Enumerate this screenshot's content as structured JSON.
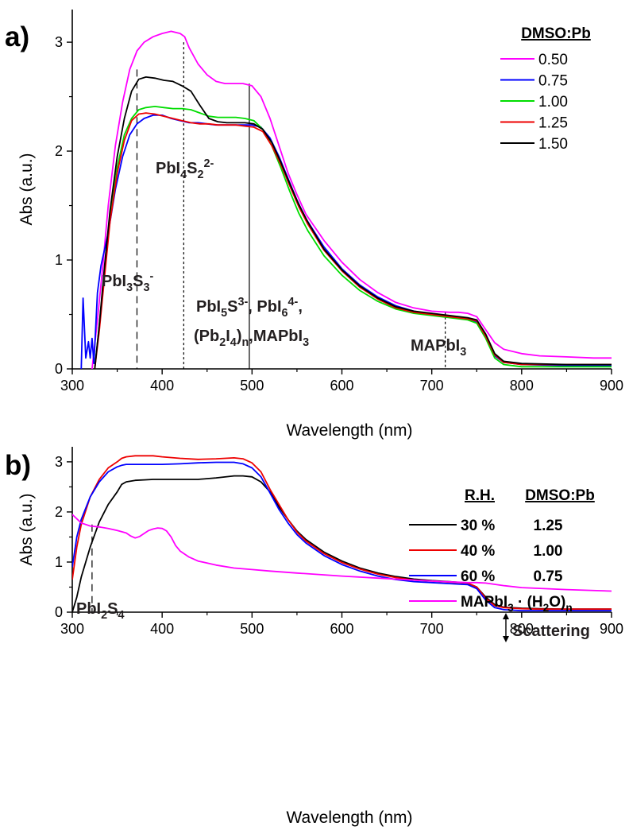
{
  "chart_data": [
    {
      "panel_label": "a)",
      "type": "line",
      "xlabel": "Wavelength (nm)",
      "ylabel": "Abs (a.u.)",
      "xlim": [
        300,
        900
      ],
      "ylim": [
        0,
        3.3
      ],
      "xticks": [
        "300",
        "400",
        "500",
        "600",
        "700",
        "800",
        "900"
      ],
      "yticks": [
        "0",
        "1",
        "2",
        "3"
      ],
      "grid": false,
      "legend_position": "top-right",
      "legend_title": "DMSO:Pb",
      "series": [
        {
          "name": "0.50",
          "color": "#ff00ff",
          "x": [
            322,
            328,
            334,
            340,
            348,
            356,
            364,
            372,
            380,
            390,
            400,
            410,
            420,
            425,
            430,
            440,
            450,
            460,
            470,
            480,
            490,
            500,
            510,
            520,
            530,
            540,
            550,
            560,
            580,
            600,
            620,
            640,
            660,
            680,
            700,
            720,
            730,
            740,
            750,
            760,
            770,
            780,
            800,
            820,
            850,
            880,
            900
          ],
          "y": [
            0,
            0.45,
            0.95,
            1.5,
            2.05,
            2.45,
            2.75,
            2.92,
            3.0,
            3.05,
            3.08,
            3.1,
            3.08,
            3.05,
            2.95,
            2.8,
            2.7,
            2.64,
            2.62,
            2.62,
            2.62,
            2.6,
            2.5,
            2.3,
            2.05,
            1.8,
            1.6,
            1.42,
            1.18,
            0.98,
            0.82,
            0.7,
            0.61,
            0.56,
            0.53,
            0.52,
            0.52,
            0.51,
            0.48,
            0.36,
            0.24,
            0.18,
            0.14,
            0.12,
            0.11,
            0.1,
            0.1
          ]
        },
        {
          "name": "0.75",
          "color": "#0000ff",
          "x": [
            310,
            312,
            315,
            318,
            320,
            322,
            324,
            328,
            332,
            340,
            348,
            356,
            364,
            372,
            380,
            390,
            400,
            410,
            420,
            430,
            440,
            450,
            460,
            470,
            480,
            490,
            500,
            510,
            520,
            530,
            540,
            550,
            560,
            580,
            600,
            620,
            640,
            660,
            680,
            700,
            720,
            740,
            750,
            760,
            770,
            780,
            800,
            850,
            900
          ],
          "y": [
            0,
            0.65,
            0.1,
            0.25,
            0.1,
            0.28,
            0.05,
            0.7,
            0.95,
            1.25,
            1.65,
            1.95,
            2.15,
            2.25,
            2.3,
            2.33,
            2.33,
            2.3,
            2.28,
            2.26,
            2.26,
            2.25,
            2.24,
            2.24,
            2.24,
            2.24,
            2.24,
            2.22,
            2.12,
            1.95,
            1.75,
            1.55,
            1.38,
            1.12,
            0.92,
            0.77,
            0.66,
            0.58,
            0.53,
            0.5,
            0.48,
            0.46,
            0.43,
            0.3,
            0.12,
            0.06,
            0.04,
            0.03,
            0.03
          ]
        },
        {
          "name": "1.00",
          "color": "#00dd00",
          "x": [
            325,
            330,
            336,
            342,
            350,
            358,
            366,
            374,
            382,
            392,
            402,
            412,
            422,
            432,
            442,
            452,
            462,
            472,
            482,
            492,
            502,
            512,
            522,
            532,
            542,
            552,
            562,
            580,
            600,
            620,
            640,
            660,
            680,
            700,
            720,
            740,
            750,
            760,
            770,
            780,
            800,
            850,
            900
          ],
          "y": [
            0,
            0.4,
            0.9,
            1.4,
            1.85,
            2.15,
            2.3,
            2.38,
            2.4,
            2.41,
            2.4,
            2.39,
            2.39,
            2.38,
            2.35,
            2.32,
            2.31,
            2.31,
            2.31,
            2.3,
            2.28,
            2.2,
            2.05,
            1.85,
            1.63,
            1.43,
            1.27,
            1.04,
            0.86,
            0.72,
            0.62,
            0.55,
            0.51,
            0.49,
            0.47,
            0.45,
            0.42,
            0.28,
            0.1,
            0.04,
            0.02,
            0.02,
            0.02
          ]
        },
        {
          "name": "1.25",
          "color": "#ee0000",
          "x": [
            325,
            330,
            336,
            342,
            350,
            358,
            366,
            374,
            382,
            392,
            402,
            412,
            422,
            432,
            442,
            452,
            462,
            472,
            482,
            492,
            502,
            512,
            522,
            532,
            542,
            552,
            562,
            580,
            600,
            620,
            640,
            660,
            680,
            700,
            720,
            740,
            750,
            760,
            770,
            780,
            800,
            850,
            900
          ],
          "y": [
            0,
            0.35,
            0.85,
            1.35,
            1.8,
            2.1,
            2.28,
            2.34,
            2.35,
            2.34,
            2.32,
            2.3,
            2.28,
            2.26,
            2.25,
            2.25,
            2.24,
            2.24,
            2.24,
            2.23,
            2.22,
            2.18,
            2.05,
            1.88,
            1.68,
            1.49,
            1.33,
            1.09,
            0.9,
            0.75,
            0.64,
            0.56,
            0.52,
            0.5,
            0.48,
            0.46,
            0.44,
            0.3,
            0.13,
            0.06,
            0.04,
            0.04,
            0.04
          ]
        },
        {
          "name": "1.50",
          "color": "#000000",
          "x": [
            325,
            330,
            336,
            342,
            350,
            358,
            366,
            374,
            382,
            392,
            402,
            412,
            422,
            432,
            442,
            452,
            462,
            472,
            482,
            492,
            502,
            512,
            522,
            532,
            542,
            552,
            562,
            580,
            600,
            620,
            640,
            660,
            680,
            700,
            720,
            740,
            750,
            760,
            770,
            780,
            800,
            850,
            900
          ],
          "y": [
            0,
            0.4,
            0.95,
            1.45,
            1.95,
            2.3,
            2.55,
            2.66,
            2.68,
            2.67,
            2.65,
            2.64,
            2.6,
            2.55,
            2.42,
            2.3,
            2.27,
            2.26,
            2.26,
            2.26,
            2.25,
            2.2,
            2.08,
            1.9,
            1.7,
            1.51,
            1.35,
            1.1,
            0.91,
            0.76,
            0.65,
            0.57,
            0.53,
            0.51,
            0.49,
            0.47,
            0.45,
            0.32,
            0.14,
            0.07,
            0.05,
            0.04,
            0.04
          ]
        }
      ],
      "markers": [
        {
          "x": 372,
          "style": "dashed",
          "ymax": 2.75
        },
        {
          "x": 424,
          "style": "dotted",
          "ymax": 3.0
        },
        {
          "x": 497,
          "style": "solid",
          "ymax": 2.62
        },
        {
          "x": 715,
          "style": "dotted",
          "ymax": 0.52
        }
      ],
      "annotations": [
        {
          "parts": [
            [
              "PbI",
              "n"
            ],
            [
              "4",
              "sub"
            ],
            [
              "S",
              "n"
            ],
            [
              "2",
              "sub"
            ],
            [
              "2-",
              "sup"
            ]
          ]
        },
        {
          "parts": [
            [
              "PbI",
              "n"
            ],
            [
              "3",
              "sub"
            ],
            [
              "S",
              "n"
            ],
            [
              "3",
              "sub"
            ],
            [
              "-",
              "sup"
            ]
          ]
        },
        {
          "parts": [
            [
              "PbI",
              "n"
            ],
            [
              "5",
              "sub"
            ],
            [
              "S",
              "n"
            ],
            [
              "3-",
              "sup"
            ],
            [
              ", PbI",
              "n"
            ],
            [
              "6",
              "sub"
            ],
            [
              "4-",
              "sup"
            ],
            [
              ",",
              "n"
            ]
          ]
        },
        {
          "parts": [
            [
              "(Pb",
              "n"
            ],
            [
              "2",
              "sub"
            ],
            [
              "I",
              "n"
            ],
            [
              "4",
              "sub"
            ],
            [
              ")",
              "n"
            ],
            [
              "n",
              "sub"
            ],
            [
              ",MAPbI",
              "n"
            ],
            [
              "3",
              "sub"
            ]
          ]
        },
        {
          "parts": [
            [
              "MAPbI",
              "n"
            ],
            [
              "3",
              "sub"
            ]
          ]
        }
      ]
    },
    {
      "panel_label": "b)",
      "type": "line",
      "xlabel": "Wavelength (nm)",
      "ylabel": "Abs (a.u.)",
      "xlim": [
        300,
        900
      ],
      "ylim": [
        0,
        3.3
      ],
      "xticks": [
        "300",
        "400",
        "500",
        "600",
        "700",
        "800",
        "900"
      ],
      "yticks": [
        "0",
        "1",
        "2",
        "3"
      ],
      "grid": false,
      "legend_position": "right",
      "legend_headers": [
        "R.H.",
        "DMSO:Pb"
      ],
      "series": [
        {
          "name": "30 %",
          "dmso": "1.25",
          "color": "#000000",
          "x": [
            300,
            305,
            310,
            320,
            330,
            340,
            350,
            355,
            360,
            370,
            380,
            390,
            400,
            420,
            440,
            460,
            480,
            490,
            500,
            510,
            520,
            530,
            540,
            550,
            560,
            580,
            600,
            620,
            640,
            660,
            680,
            700,
            720,
            740,
            750,
            760,
            770,
            780,
            800,
            820,
            850,
            900
          ],
          "y": [
            0,
            0.3,
            0.7,
            1.3,
            1.8,
            2.15,
            2.4,
            2.55,
            2.6,
            2.63,
            2.64,
            2.65,
            2.65,
            2.65,
            2.65,
            2.68,
            2.72,
            2.72,
            2.7,
            2.6,
            2.4,
            2.1,
            1.85,
            1.62,
            1.45,
            1.2,
            1.02,
            0.88,
            0.78,
            0.71,
            0.66,
            0.63,
            0.61,
            0.58,
            0.5,
            0.3,
            0.15,
            0.1,
            0.08,
            0.07,
            0.06,
            0.06
          ]
        },
        {
          "name": "40 %",
          "dmso": "1.00",
          "color": "#ee0000",
          "x": [
            300,
            305,
            310,
            320,
            330,
            340,
            350,
            355,
            360,
            370,
            380,
            390,
            400,
            420,
            440,
            460,
            480,
            490,
            500,
            510,
            520,
            530,
            540,
            550,
            560,
            580,
            600,
            620,
            640,
            660,
            680,
            700,
            720,
            740,
            750,
            760,
            770,
            780,
            800,
            820,
            850,
            900
          ],
          "y": [
            0.65,
            1.3,
            1.75,
            2.3,
            2.65,
            2.88,
            3.0,
            3.07,
            3.1,
            3.12,
            3.12,
            3.12,
            3.1,
            3.07,
            3.05,
            3.06,
            3.08,
            3.06,
            2.98,
            2.8,
            2.45,
            2.15,
            1.85,
            1.6,
            1.42,
            1.17,
            0.99,
            0.86,
            0.76,
            0.69,
            0.64,
            0.62,
            0.6,
            0.58,
            0.5,
            0.28,
            0.13,
            0.09,
            0.07,
            0.06,
            0.06,
            0.06
          ]
        },
        {
          "name": "60 %",
          "dmso": "0.75",
          "color": "#0000ff",
          "x": [
            300,
            305,
            310,
            320,
            330,
            340,
            350,
            355,
            360,
            370,
            380,
            390,
            400,
            420,
            440,
            460,
            480,
            490,
            500,
            510,
            520,
            530,
            540,
            550,
            560,
            580,
            600,
            620,
            640,
            660,
            680,
            700,
            720,
            740,
            750,
            760,
            770,
            780,
            800,
            820,
            850,
            900
          ],
          "y": [
            0.9,
            1.5,
            1.85,
            2.3,
            2.6,
            2.8,
            2.9,
            2.93,
            2.95,
            2.95,
            2.95,
            2.95,
            2.95,
            2.96,
            2.98,
            2.99,
            2.99,
            2.96,
            2.88,
            2.7,
            2.38,
            2.05,
            1.78,
            1.55,
            1.38,
            1.13,
            0.95,
            0.82,
            0.72,
            0.65,
            0.61,
            0.59,
            0.57,
            0.55,
            0.47,
            0.24,
            0.09,
            0.05,
            0.03,
            0.03,
            0.03,
            0.03
          ]
        },
        {
          "name": "MAPbI3 · (H2O)n",
          "name_parts": [
            [
              "MAPbI",
              "n"
            ],
            [
              "3",
              "sub"
            ],
            [
              " · (H",
              "n"
            ],
            [
              "2",
              "sub"
            ],
            [
              "O)",
              "n"
            ],
            [
              "n",
              "sub"
            ]
          ],
          "color": "#ff00ff",
          "x": [
            300,
            310,
            320,
            330,
            340,
            350,
            360,
            365,
            370,
            375,
            380,
            385,
            390,
            395,
            400,
            405,
            410,
            415,
            420,
            430,
            440,
            460,
            480,
            500,
            520,
            550,
            600,
            650,
            700,
            740,
            750,
            760,
            780,
            800,
            850,
            900
          ],
          "y": [
            1.95,
            1.78,
            1.72,
            1.7,
            1.67,
            1.63,
            1.58,
            1.52,
            1.48,
            1.51,
            1.57,
            1.63,
            1.66,
            1.68,
            1.67,
            1.62,
            1.5,
            1.33,
            1.22,
            1.1,
            1.02,
            0.94,
            0.88,
            0.85,
            0.82,
            0.78,
            0.72,
            0.67,
            0.62,
            0.59,
            0.59,
            0.58,
            0.53,
            0.49,
            0.45,
            0.42
          ]
        }
      ],
      "markers": [
        {
          "x": 322,
          "style": "dashed",
          "ymax": 1.75
        }
      ],
      "annotations": [
        {
          "parts": [
            [
              "PbI",
              "n"
            ],
            [
              "2",
              "sub"
            ],
            [
              "S",
              "n"
            ],
            [
              "4",
              "sub"
            ]
          ]
        },
        {
          "parts": [
            [
              "Scattering",
              "n"
            ]
          ]
        }
      ]
    }
  ]
}
